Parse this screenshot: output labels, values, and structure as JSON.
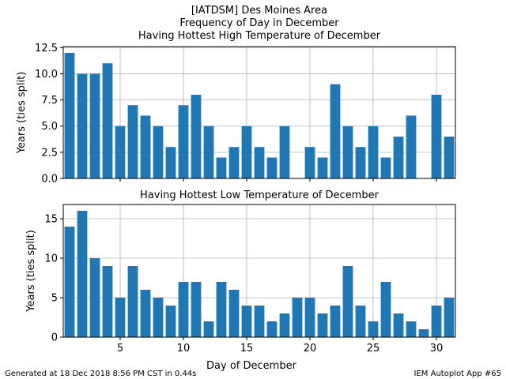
{
  "title_lines": [
    "[IATDSM] Des Moines Area",
    "Frequency of Day in December",
    "Having Hottest High Temperature of December"
  ],
  "footer": {
    "left": "Generated at 18 Dec 2018 8:56 PM CST in 0.44s",
    "right": "IEM Autoplot App #65"
  },
  "colors": {
    "bar": "#1f77b4",
    "grid": "#b0b0b0",
    "axes": "#000000"
  },
  "chart_data": [
    {
      "type": "bar",
      "title": "Having Hottest High Temperature of December",
      "xlabel": "",
      "ylabel": "Years (ties split)",
      "x": [
        1,
        2,
        3,
        4,
        5,
        6,
        7,
        8,
        9,
        10,
        11,
        12,
        13,
        14,
        15,
        16,
        17,
        18,
        19,
        20,
        21,
        22,
        23,
        24,
        25,
        26,
        27,
        28,
        29,
        30,
        31
      ],
      "values": [
        12,
        10,
        10,
        11,
        5,
        7,
        6,
        5,
        3,
        7,
        8,
        5,
        2,
        3,
        5,
        3,
        2,
        5,
        0,
        3,
        2,
        9,
        5,
        3,
        5,
        2,
        4,
        6,
        0,
        8,
        4
      ],
      "xlim": [
        0.5,
        31.5
      ],
      "ylim": [
        0,
        12.6
      ],
      "xticks": [
        5,
        10,
        15,
        20,
        25,
        30
      ],
      "xtick_labels": [
        "",
        "",
        "",
        "",
        "",
        ""
      ],
      "yticks": [
        0,
        2.5,
        5,
        7.5,
        10,
        12.5
      ],
      "ytick_labels": [
        "0.0",
        "2.5",
        "5.0",
        "7.5",
        "10.0",
        "12.5"
      ],
      "grid": true
    },
    {
      "type": "bar",
      "title": "Having Hottest Low Temperature of December",
      "xlabel": "Day of December",
      "ylabel": "Years (ties split)",
      "x": [
        1,
        2,
        3,
        4,
        5,
        6,
        7,
        8,
        9,
        10,
        11,
        12,
        13,
        14,
        15,
        16,
        17,
        18,
        19,
        20,
        21,
        22,
        23,
        24,
        25,
        26,
        27,
        28,
        29,
        30,
        31
      ],
      "values": [
        14,
        16,
        10,
        9,
        5,
        9,
        6,
        5,
        4,
        7,
        7,
        2,
        7,
        6,
        4,
        4,
        2,
        3,
        5,
        5,
        3,
        4,
        9,
        4,
        2,
        7,
        3,
        2,
        1,
        4,
        5
      ],
      "xlim": [
        0.5,
        31.5
      ],
      "ylim": [
        0,
        16.8
      ],
      "xticks": [
        5,
        10,
        15,
        20,
        25,
        30
      ],
      "xtick_labels": [
        "5",
        "10",
        "15",
        "20",
        "25",
        "30"
      ],
      "yticks": [
        0,
        5,
        10,
        15
      ],
      "ytick_labels": [
        "0",
        "5",
        "10",
        "15"
      ],
      "grid": true
    }
  ]
}
